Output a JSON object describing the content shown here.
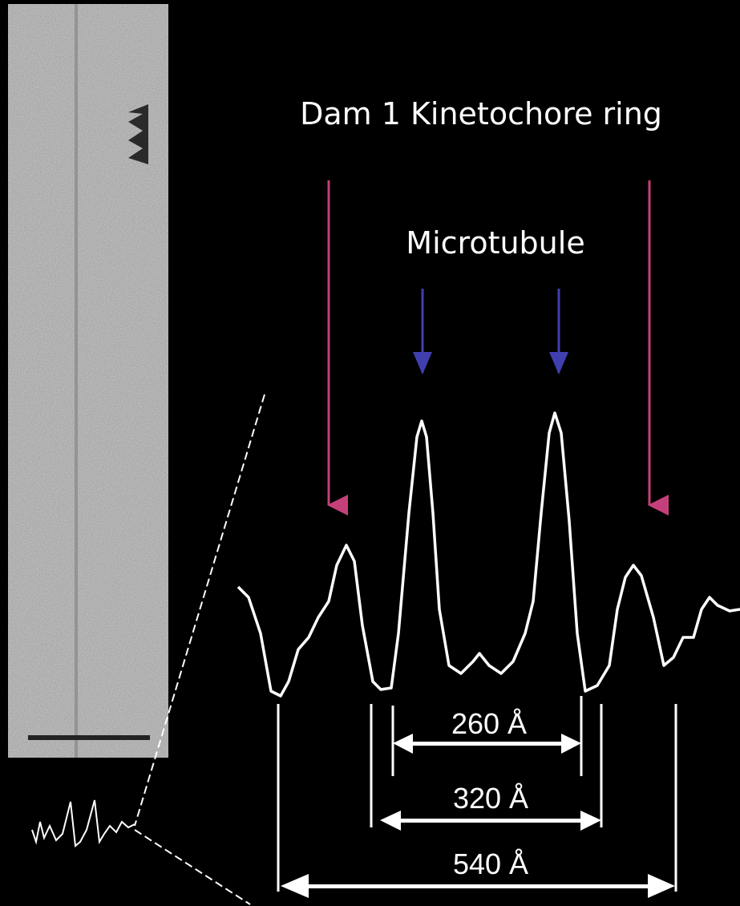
{
  "labels": {
    "ring": "Dam 1 Kinetochore ring",
    "microtubule": "Microtubule"
  },
  "measurements": [
    "260 Å",
    "320 Å",
    "540 Å"
  ]
}
